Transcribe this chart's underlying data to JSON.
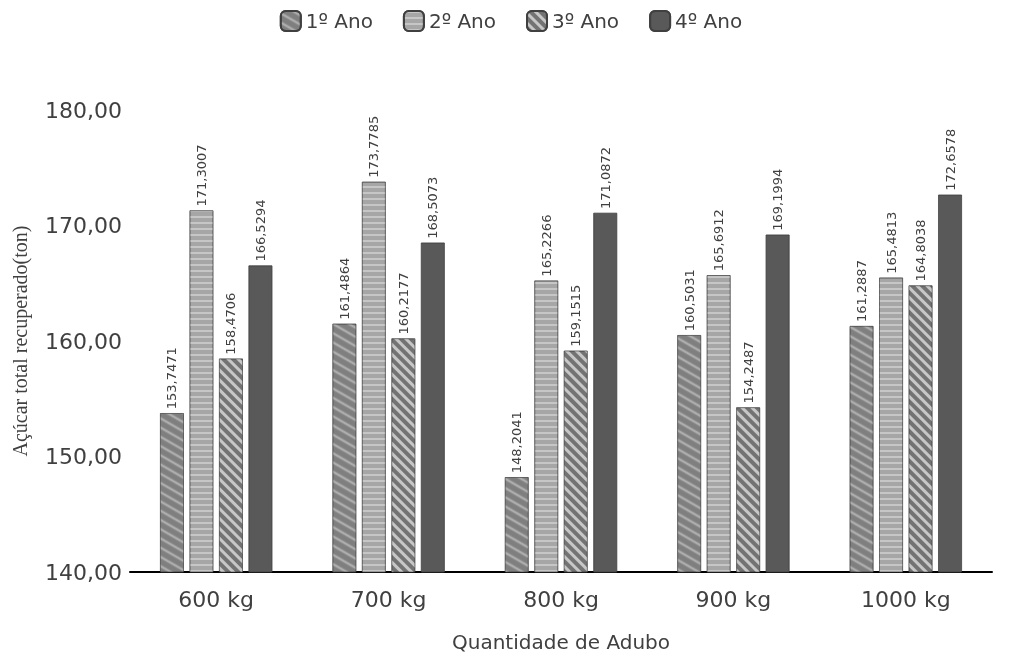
{
  "chart_data": {
    "type": "bar",
    "xlabel": "Quantidade de Adubo",
    "ylabel": "Açúcar total recuperado(ton)",
    "categories": [
      "600 kg",
      "700 kg",
      "800 kg",
      "900 kg",
      "1000 kg"
    ],
    "series": [
      {
        "name": "1º Ano",
        "color": "#7f7f7f",
        "values": [
          153.7471,
          161.4864,
          148.2041,
          160.5031,
          161.2887
        ],
        "value_labels": [
          "153,7471",
          "161,4864",
          "148,2041",
          "160,5031",
          "161,2887"
        ]
      },
      {
        "name": "2º Ano",
        "color": "#a6a6a6",
        "values": [
          171.3007,
          173.7785,
          165.2266,
          165.6912,
          165.4813
        ],
        "value_labels": [
          "171,3007",
          "173,7785",
          "165,2266",
          "165,6912",
          "165,4813"
        ]
      },
      {
        "name": "3º Ano",
        "color": "#737373",
        "values": [
          158.4706,
          160.2177,
          159.1515,
          154.2487,
          164.8038
        ],
        "value_labels": [
          "158,4706",
          "160,2177",
          "159,1515",
          "154,2487",
          "164,8038"
        ]
      },
      {
        "name": "4º Ano",
        "color": "#595959",
        "values": [
          166.5294,
          168.5073,
          171.0872,
          169.1994,
          172.6578
        ],
        "value_labels": [
          "166,5294",
          "168,5073",
          "171,0872",
          "169,1994",
          "172,6578"
        ]
      }
    ],
    "ylim": [
      140,
      180
    ],
    "yticks": [
      {
        "value": 140,
        "label": "140,00"
      },
      {
        "value": 150,
        "label": "150,00"
      },
      {
        "value": 160,
        "label": "160,00"
      },
      {
        "value": 170,
        "label": "170,00"
      },
      {
        "value": 180,
        "label": "180,00"
      }
    ],
    "grid": false,
    "legend": "top"
  }
}
